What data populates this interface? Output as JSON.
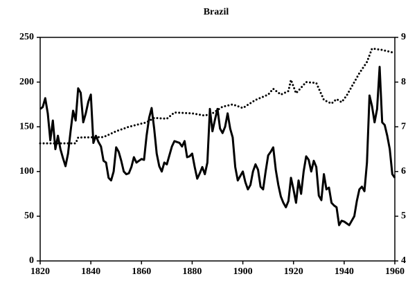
{
  "chart_data": {
    "type": "line",
    "title": "Brazil",
    "xlim": [
      1820,
      1960
    ],
    "xticks": [
      1820,
      1840,
      1860,
      1880,
      1900,
      1920,
      1940,
      1960
    ],
    "ylim": [
      0,
      250
    ],
    "yticks": [
      0,
      50,
      100,
      150,
      200,
      250
    ],
    "y2lim": [
      4,
      9
    ],
    "y2ticks": [
      4,
      5,
      6,
      7,
      8,
      9
    ],
    "series": [
      {
        "color": "#000000",
        "style": "solid",
        "x": [
          1820,
          1821,
          1822,
          1823,
          1824,
          1825,
          1826,
          1827,
          1828,
          1829,
          1830,
          1831,
          1832,
          1833,
          1834,
          1835,
          1836,
          1837,
          1838,
          1839,
          1840,
          1841,
          1842,
          1843,
          1844,
          1845,
          1846,
          1847,
          1848,
          1849,
          1850,
          1851,
          1852,
          1853,
          1854,
          1855,
          1856,
          1857,
          1858,
          1859,
          1860,
          1861,
          1862,
          1863,
          1864,
          1865,
          1866,
          1867,
          1868,
          1869,
          1870,
          1871,
          1872,
          1873,
          1874,
          1875,
          1876,
          1877,
          1878,
          1879,
          1880,
          1881,
          1882,
          1883,
          1884,
          1885,
          1886,
          1887,
          1888,
          1889,
          1890,
          1891,
          1892,
          1893,
          1894,
          1895,
          1896,
          1897,
          1898,
          1899,
          1900,
          1901,
          1902,
          1903,
          1904,
          1905,
          1906,
          1907,
          1908,
          1909,
          1910,
          1911,
          1912,
          1913,
          1914,
          1915,
          1916,
          1917,
          1918,
          1919,
          1920,
          1921,
          1922,
          1923,
          1924,
          1925,
          1926,
          1927,
          1928,
          1929,
          1930,
          1931,
          1932,
          1933,
          1934,
          1935,
          1936,
          1937,
          1938,
          1939,
          1940,
          1941,
          1942,
          1943,
          1944,
          1945,
          1946,
          1947,
          1948,
          1949,
          1950,
          1951,
          1952,
          1953,
          1954,
          1955,
          1956,
          1957,
          1958,
          1959,
          1960
        ],
        "values": [
          170,
          172,
          182,
          165,
          135,
          157,
          125,
          140,
          125,
          115,
          106,
          120,
          145,
          168,
          157,
          193,
          188,
          155,
          165,
          178,
          186,
          132,
          140,
          133,
          128,
          112,
          110,
          93,
          90,
          100,
          127,
          122,
          112,
          100,
          97,
          98,
          105,
          116,
          110,
          112,
          114,
          113,
          140,
          160,
          171,
          148,
          120,
          106,
          100,
          110,
          108,
          118,
          128,
          134,
          133,
          132,
          128,
          134,
          116,
          117,
          120,
          105,
          92,
          98,
          105,
          97,
          110,
          170,
          145,
          158,
          170,
          148,
          143,
          150,
          165,
          148,
          138,
          105,
          90,
          95,
          100,
          88,
          80,
          85,
          100,
          108,
          102,
          83,
          80,
          100,
          118,
          122,
          127,
          102,
          85,
          72,
          65,
          60,
          67,
          93,
          80,
          65,
          90,
          75,
          100,
          117,
          113,
          100,
          112,
          105,
          73,
          68,
          97,
          80,
          82,
          65,
          62,
          60,
          40,
          45,
          44,
          42,
          40,
          45,
          50,
          67,
          80,
          83,
          78,
          110,
          185,
          173,
          155,
          170,
          217,
          155,
          152,
          140,
          125,
          97,
          93
        ]
      },
      {
        "color": "#000000",
        "style": "dotted",
        "axis": "y2",
        "x": [
          1820,
          1834,
          1835,
          1845,
          1850,
          1855,
          1862,
          1865,
          1870,
          1873,
          1880,
          1885,
          1888,
          1892,
          1896,
          1900,
          1905,
          1910,
          1912,
          1915,
          1918,
          1919,
          1921,
          1925,
          1929,
          1932,
          1935,
          1937,
          1939,
          1941,
          1944,
          1946,
          1949,
          1951,
          1955,
          1960
        ],
        "values": [
          6.63,
          6.63,
          6.76,
          6.77,
          6.9,
          7.0,
          7.1,
          7.2,
          7.18,
          7.32,
          7.3,
          7.25,
          7.3,
          7.45,
          7.5,
          7.42,
          7.6,
          7.72,
          7.85,
          7.72,
          7.8,
          8.05,
          7.75,
          8.0,
          7.98,
          7.6,
          7.52,
          7.62,
          7.55,
          7.7,
          8.0,
          8.2,
          8.45,
          8.75,
          8.72,
          8.65
        ]
      }
    ]
  }
}
